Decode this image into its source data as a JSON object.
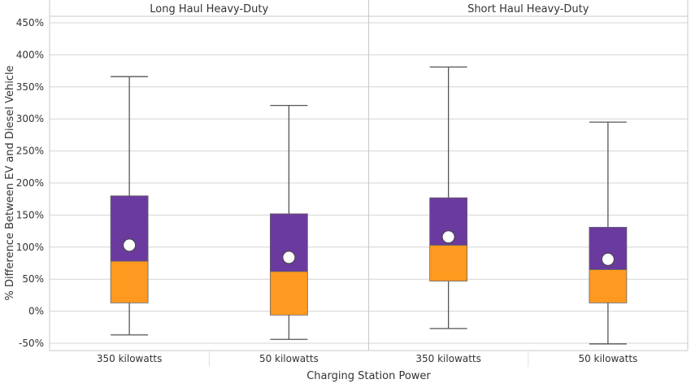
{
  "chart_data": {
    "type": "boxplot",
    "xlabel": "Charging Station Power",
    "ylabel": "% Difference Between EV and Diesel Vehicle",
    "ylim": [
      -50,
      450
    ],
    "yticks": [
      -50,
      0,
      50,
      100,
      150,
      200,
      250,
      300,
      350,
      400,
      450
    ],
    "ytick_labels": [
      "-50%",
      "0%",
      "50%",
      "100%",
      "150%",
      "200%",
      "250%",
      "300%",
      "350%",
      "400%",
      "450%"
    ],
    "grid": true,
    "colors": {
      "lower_box": "#FF991F",
      "upper_box": "#6B3A9E",
      "mean_marker": "#FFFFFF",
      "whisker": "#555555"
    },
    "panels": [
      {
        "title": "Long Haul Heavy-Duty",
        "categories": [
          "350 kilowatts",
          "50 kilowatts"
        ],
        "boxes": [
          {
            "min": -37,
            "q1": 13,
            "median": 78,
            "q3": 180,
            "max": 366,
            "mean": 103
          },
          {
            "min": -44,
            "q1": -6,
            "median": 62,
            "q3": 152,
            "max": 321,
            "mean": 84
          }
        ]
      },
      {
        "title": "Short Haul Heavy-Duty",
        "categories": [
          "350 kilowatts",
          "50 kilowatts"
        ],
        "boxes": [
          {
            "min": -27,
            "q1": 47,
            "median": 103,
            "q3": 177,
            "max": 381,
            "mean": 116
          },
          {
            "min": -51,
            "q1": 13,
            "median": 65,
            "q3": 131,
            "max": 295,
            "mean": 81
          }
        ]
      }
    ]
  }
}
